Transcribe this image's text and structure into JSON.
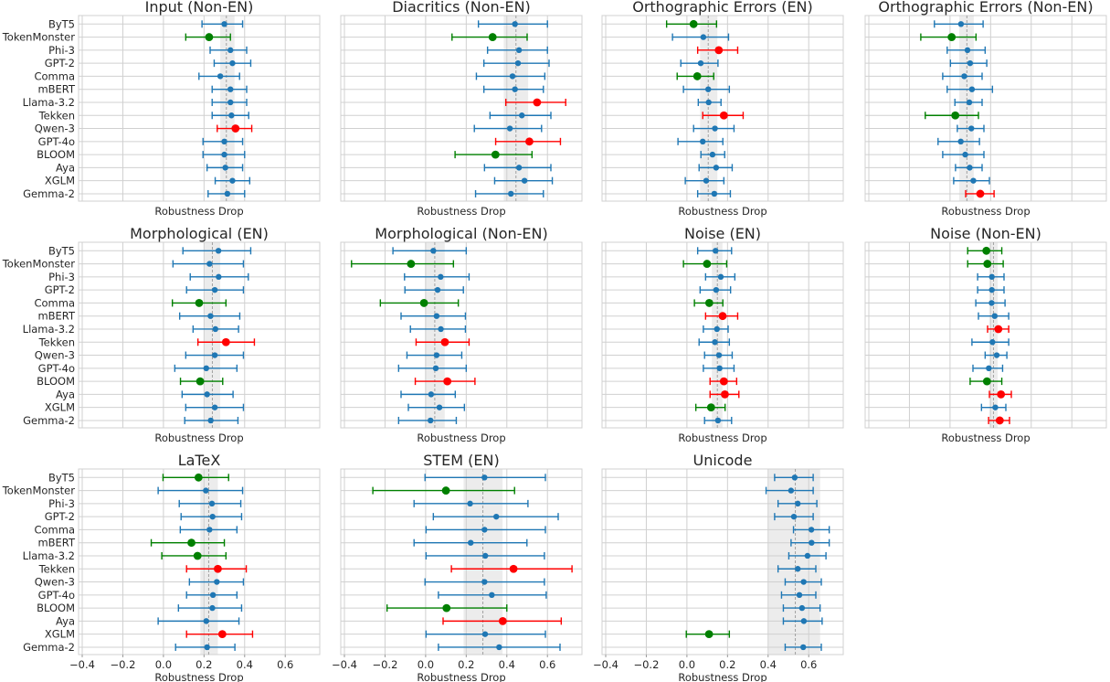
{
  "chart_data": {
    "type": "scatter",
    "subtype": "dot-with-error-bars, small multiples",
    "xlabel": "Robustness Drop",
    "xlim": [
      -0.418,
      0.77
    ],
    "xticks": [
      -0.4,
      -0.2,
      0.0,
      0.2,
      0.4,
      0.6
    ],
    "xtick_labels": [
      "−0.4",
      "−0.2",
      "0.0",
      "0.2",
      "0.4",
      "0.6"
    ],
    "grid": true,
    "models": [
      "ByT5",
      "TokenMonster",
      "Phi-3",
      "GPT-2",
      "Comma",
      "mBERT",
      "Llama-3.2",
      "Tekken",
      "Qwen-3",
      "GPT-4o",
      "BLOOM",
      "Aya",
      "XGLM",
      "Gemma-2"
    ],
    "colors": {
      "normal": "#1f77b4",
      "low": "#008000",
      "high": "#ff0000",
      "band": "#ececec",
      "mean_line": "#a0a0a0",
      "grid": "#d0d0d0"
    },
    "point_format": [
      "value",
      "ci_low",
      "ci_high",
      "status"
    ],
    "panels": [
      {
        "title": "Input (Non-EN)",
        "mean": 0.31,
        "band": [
          0.28,
          0.35
        ],
        "points": [
          [
            0.3,
            0.19,
            0.39,
            "normal"
          ],
          [
            0.225,
            0.11,
            0.33,
            "low"
          ],
          [
            0.33,
            0.23,
            0.41,
            "normal"
          ],
          [
            0.34,
            0.25,
            0.43,
            "normal"
          ],
          [
            0.28,
            0.175,
            0.375,
            "normal"
          ],
          [
            0.33,
            0.24,
            0.41,
            "normal"
          ],
          [
            0.33,
            0.24,
            0.41,
            "normal"
          ],
          [
            0.335,
            0.24,
            0.42,
            "normal"
          ],
          [
            0.355,
            0.265,
            0.435,
            "high"
          ],
          [
            0.3,
            0.195,
            0.39,
            "normal"
          ],
          [
            0.3,
            0.195,
            0.4,
            "normal"
          ],
          [
            0.305,
            0.215,
            0.39,
            "normal"
          ],
          [
            0.34,
            0.255,
            0.425,
            "normal"
          ],
          [
            0.315,
            0.22,
            0.4,
            "normal"
          ]
        ]
      },
      {
        "title": "Diacritics (Non-EN)",
        "mean": 0.445,
        "band": [
          0.385,
          0.505
        ],
        "points": [
          [
            0.44,
            0.26,
            0.6,
            "normal"
          ],
          [
            0.33,
            0.13,
            0.5,
            "low"
          ],
          [
            0.46,
            0.305,
            0.6,
            "normal"
          ],
          [
            0.455,
            0.287,
            0.608,
            "normal"
          ],
          [
            0.428,
            0.25,
            0.587,
            "normal"
          ],
          [
            0.44,
            0.287,
            0.58,
            "normal"
          ],
          [
            0.549,
            0.395,
            0.69,
            "high"
          ],
          [
            0.474,
            0.317,
            0.617,
            "normal"
          ],
          [
            0.415,
            0.24,
            0.571,
            "normal"
          ],
          [
            0.511,
            0.345,
            0.664,
            "high"
          ],
          [
            0.344,
            0.145,
            0.524,
            "low"
          ],
          [
            0.46,
            0.29,
            0.617,
            "normal"
          ],
          [
            0.487,
            0.34,
            0.624,
            "normal"
          ],
          [
            0.42,
            0.246,
            0.58,
            "normal"
          ]
        ]
      },
      {
        "title": "Orthographic Errors (EN)",
        "mean": 0.105,
        "band": [
          0.065,
          0.15
        ],
        "points": [
          [
            0.033,
            -0.1,
            0.146,
            "low"
          ],
          [
            0.081,
            -0.071,
            0.205,
            "normal"
          ],
          [
            0.157,
            0.053,
            0.25,
            "high"
          ],
          [
            0.068,
            -0.03,
            0.153,
            "normal"
          ],
          [
            0.051,
            -0.048,
            0.132,
            "low"
          ],
          [
            0.105,
            -0.017,
            0.209,
            "normal"
          ],
          [
            0.107,
            0.056,
            0.168,
            "normal"
          ],
          [
            0.182,
            0.078,
            0.277,
            "high"
          ],
          [
            0.138,
            0.033,
            0.232,
            "normal"
          ],
          [
            0.078,
            -0.044,
            0.177,
            "normal"
          ],
          [
            0.126,
            0.069,
            0.186,
            "normal"
          ],
          [
            0.144,
            0.06,
            0.223,
            "normal"
          ],
          [
            0.095,
            -0.008,
            0.182,
            "normal"
          ],
          [
            0.135,
            0.053,
            0.214,
            "normal"
          ]
        ]
      },
      {
        "title": "Orthographic Errors (Non-EN)",
        "mean": 0.083,
        "band": [
          0.045,
          0.117
        ],
        "points": [
          [
            0.054,
            -0.077,
            0.163,
            "normal"
          ],
          [
            0.008,
            -0.144,
            0.128,
            "low"
          ],
          [
            0.086,
            -0.014,
            0.173,
            "normal"
          ],
          [
            0.099,
            0.002,
            0.181,
            "normal"
          ],
          [
            0.07,
            -0.036,
            0.158,
            "normal"
          ],
          [
            0.108,
            -0.014,
            0.209,
            "normal"
          ],
          [
            0.095,
            0.024,
            0.158,
            "normal"
          ],
          [
            0.026,
            -0.122,
            0.14,
            "low"
          ],
          [
            0.105,
            0.036,
            0.167,
            "normal"
          ],
          [
            0.053,
            -0.059,
            0.145,
            "normal"
          ],
          [
            0.075,
            -0.036,
            0.167,
            "normal"
          ],
          [
            0.097,
            0.027,
            0.158,
            "normal"
          ],
          [
            0.115,
            0.018,
            0.194,
            "normal"
          ],
          [
            0.149,
            0.077,
            0.217,
            "high"
          ]
        ]
      },
      {
        "title": "Morphological (EN)",
        "mean": 0.241,
        "band": [
          0.2,
          0.28
        ],
        "points": [
          [
            0.271,
            0.096,
            0.43,
            "normal"
          ],
          [
            0.227,
            0.047,
            0.394,
            "normal"
          ],
          [
            0.272,
            0.132,
            0.418,
            "normal"
          ],
          [
            0.253,
            0.114,
            0.394,
            "normal"
          ],
          [
            0.176,
            0.044,
            0.308,
            "low"
          ],
          [
            0.232,
            0.08,
            0.376,
            "normal"
          ],
          [
            0.256,
            0.146,
            0.37,
            "normal"
          ],
          [
            0.308,
            0.17,
            0.448,
            "high"
          ],
          [
            0.253,
            0.11,
            0.394,
            "normal"
          ],
          [
            0.211,
            0.056,
            0.362,
            "normal"
          ],
          [
            0.181,
            0.084,
            0.292,
            "low"
          ],
          [
            0.215,
            0.092,
            0.343,
            "normal"
          ],
          [
            0.253,
            0.11,
            0.394,
            "normal"
          ],
          [
            0.233,
            0.105,
            0.367,
            "normal"
          ]
        ]
      },
      {
        "title": "Morphological (Non-EN)",
        "mean": 0.045,
        "band": [
          -0.003,
          0.094
        ],
        "points": [
          [
            0.038,
            -0.161,
            0.2,
            "normal"
          ],
          [
            -0.072,
            -0.365,
            0.137,
            "low"
          ],
          [
            0.074,
            -0.104,
            0.214,
            "normal"
          ],
          [
            0.059,
            -0.102,
            0.186,
            "normal"
          ],
          [
            -0.008,
            -0.223,
            0.161,
            "low"
          ],
          [
            0.054,
            -0.121,
            0.196,
            "normal"
          ],
          [
            0.075,
            -0.075,
            0.196,
            "normal"
          ],
          [
            0.095,
            -0.047,
            0.214,
            "high"
          ],
          [
            0.054,
            -0.092,
            0.178,
            "normal"
          ],
          [
            0.05,
            -0.133,
            0.2,
            "normal"
          ],
          [
            0.107,
            -0.051,
            0.243,
            "high"
          ],
          [
            0.027,
            -0.121,
            0.146,
            "normal"
          ],
          [
            0.068,
            -0.085,
            0.191,
            "normal"
          ],
          [
            0.024,
            -0.133,
            0.151,
            "normal"
          ]
        ]
      },
      {
        "title": "Noise (EN)",
        "mean": 0.15,
        "band": [
          0.123,
          0.175
        ],
        "points": [
          [
            0.141,
            0.053,
            0.22,
            "normal"
          ],
          [
            0.099,
            -0.017,
            0.196,
            "low"
          ],
          [
            0.167,
            0.092,
            0.236,
            "normal"
          ],
          [
            0.144,
            0.065,
            0.215,
            "normal"
          ],
          [
            0.11,
            0.037,
            0.177,
            "low"
          ],
          [
            0.176,
            0.092,
            0.25,
            "high"
          ],
          [
            0.148,
            0.081,
            0.203,
            "normal"
          ],
          [
            0.138,
            0.06,
            0.209,
            "normal"
          ],
          [
            0.158,
            0.087,
            0.223,
            "normal"
          ],
          [
            0.161,
            0.081,
            0.232,
            "normal"
          ],
          [
            0.182,
            0.114,
            0.245,
            "high"
          ],
          [
            0.187,
            0.114,
            0.256,
            "high"
          ],
          [
            0.119,
            0.044,
            0.188,
            "low"
          ],
          [
            0.153,
            0.087,
            0.22,
            "normal"
          ]
        ]
      },
      {
        "title": "Noise (Non-EN)",
        "mean": 0.214,
        "band": [
          0.193,
          0.235
        ],
        "points": [
          [
            0.179,
            0.087,
            0.255,
            "low"
          ],
          [
            0.184,
            0.087,
            0.262,
            "low"
          ],
          [
            0.206,
            0.136,
            0.266,
            "normal"
          ],
          [
            0.206,
            0.136,
            0.266,
            "normal"
          ],
          [
            0.205,
            0.127,
            0.271,
            "normal"
          ],
          [
            0.22,
            0.14,
            0.289,
            "normal"
          ],
          [
            0.238,
            0.185,
            0.289,
            "high"
          ],
          [
            0.209,
            0.108,
            0.289,
            "normal"
          ],
          [
            0.23,
            0.173,
            0.28,
            "normal"
          ],
          [
            0.191,
            0.113,
            0.259,
            "normal"
          ],
          [
            0.182,
            0.099,
            0.255,
            "low"
          ],
          [
            0.251,
            0.194,
            0.302,
            "high"
          ],
          [
            0.223,
            0.155,
            0.275,
            "normal"
          ],
          [
            0.245,
            0.19,
            0.293,
            "high"
          ]
        ]
      },
      {
        "title": "LaTeX",
        "mean": 0.223,
        "band": [
          0.182,
          0.268
        ],
        "points": [
          [
            0.173,
            -0.002,
            0.321,
            "low"
          ],
          [
            0.209,
            -0.026,
            0.39,
            "normal"
          ],
          [
            0.239,
            0.078,
            0.381,
            "normal"
          ],
          [
            0.242,
            0.087,
            0.385,
            "normal"
          ],
          [
            0.227,
            0.083,
            0.362,
            "normal"
          ],
          [
            0.138,
            -0.06,
            0.3,
            "low"
          ],
          [
            0.168,
            -0.008,
            0.308,
            "low"
          ],
          [
            0.268,
            0.114,
            0.408,
            "high"
          ],
          [
            0.263,
            0.128,
            0.394,
            "normal"
          ],
          [
            0.244,
            0.114,
            0.362,
            "normal"
          ],
          [
            0.241,
            0.074,
            0.385,
            "normal"
          ],
          [
            0.211,
            -0.026,
            0.372,
            "normal"
          ],
          [
            0.29,
            0.114,
            0.439,
            "high"
          ],
          [
            0.215,
            0.06,
            0.352,
            "normal"
          ]
        ]
      },
      {
        "title": "STEM (EN)",
        "mean": 0.282,
        "band": [
          0.187,
          0.379
        ],
        "points": [
          [
            0.29,
            -0.003,
            0.59,
            "normal"
          ],
          [
            0.1,
            -0.26,
            0.438,
            "low"
          ],
          [
            0.219,
            -0.057,
            0.504,
            "normal"
          ],
          [
            0.348,
            0.038,
            0.653,
            "normal"
          ],
          [
            0.29,
            0.002,
            0.59,
            "normal"
          ],
          [
            0.222,
            -0.057,
            0.499,
            "normal"
          ],
          [
            0.294,
            0.002,
            0.585,
            "normal"
          ],
          [
            0.433,
            0.127,
            0.721,
            "high"
          ],
          [
            0.29,
            -0.003,
            0.585,
            "normal"
          ],
          [
            0.326,
            0.063,
            0.594,
            "normal"
          ],
          [
            0.103,
            -0.19,
            0.4,
            "low"
          ],
          [
            0.38,
            0.086,
            0.668,
            "high"
          ],
          [
            0.293,
            0.002,
            0.59,
            "normal"
          ],
          [
            0.362,
            0.063,
            0.662,
            "normal"
          ]
        ]
      },
      {
        "title": "Unicode",
        "mean": 0.534,
        "band": [
          0.402,
          0.656
        ],
        "points": [
          [
            0.531,
            0.432,
            0.622,
            "normal"
          ],
          [
            0.513,
            0.39,
            0.622,
            "normal"
          ],
          [
            0.546,
            0.449,
            0.64,
            "normal"
          ],
          [
            0.527,
            0.432,
            0.622,
            "normal"
          ],
          [
            0.613,
            0.525,
            0.701,
            "normal"
          ],
          [
            0.614,
            0.513,
            0.701,
            "normal"
          ],
          [
            0.594,
            0.502,
            0.685,
            "normal"
          ],
          [
            0.546,
            0.449,
            0.635,
            "normal"
          ],
          [
            0.575,
            0.484,
            0.662,
            "normal"
          ],
          [
            0.554,
            0.466,
            0.635,
            "normal"
          ],
          [
            0.567,
            0.475,
            0.656,
            "normal"
          ],
          [
            0.576,
            0.475,
            0.666,
            "normal"
          ],
          [
            0.109,
            -0.003,
            0.209,
            "low"
          ],
          [
            0.573,
            0.484,
            0.662,
            "normal"
          ]
        ]
      }
    ]
  }
}
